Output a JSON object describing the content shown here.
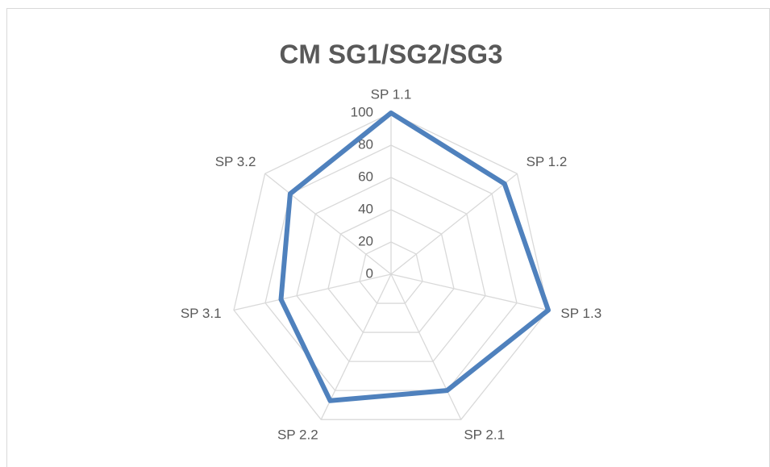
{
  "chart_data": {
    "type": "radar",
    "title": "CM SG1/SG2/SG3",
    "categories": [
      "SP 1.1",
      "SP 1.2",
      "SP 1.3",
      "SP 2.1",
      "SP 2.2",
      "SP 3.1",
      "SP 3.2"
    ],
    "series": [
      {
        "color": "#4f81bd",
        "values": [
          100,
          90,
          100,
          80,
          87,
          70,
          80
        ]
      }
    ],
    "ylim": [
      0,
      100
    ],
    "yticks": [
      0,
      20,
      40,
      60,
      80,
      100
    ],
    "grid": true
  }
}
